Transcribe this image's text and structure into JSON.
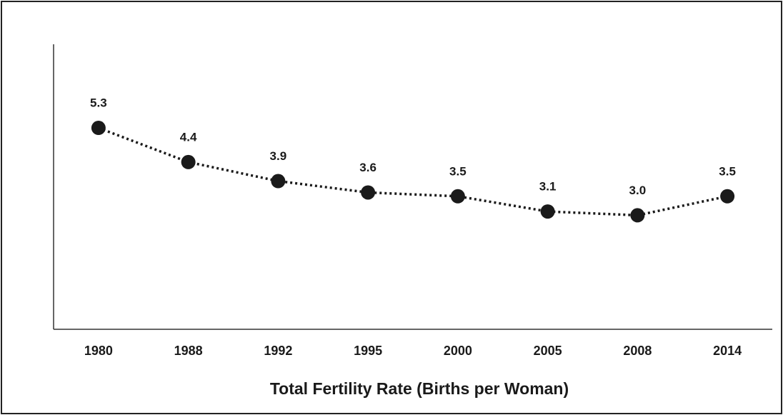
{
  "chart_data": {
    "type": "line",
    "x_label": "Total Fertility Rate (Births per Woman)",
    "categories": [
      "1980",
      "1988",
      "1992",
      "1995",
      "2000",
      "2005",
      "2008",
      "2014"
    ],
    "values": [
      5.3,
      4.4,
      3.9,
      3.6,
      3.5,
      3.1,
      3.0,
      3.5
    ],
    "value_labels": [
      "5.3",
      "4.4",
      "3.9",
      "3.6",
      "3.5",
      "3.1",
      "3.0",
      "3.5"
    ],
    "color": "#1a1a1a",
    "ylim": [
      0,
      7.5
    ],
    "line_style": "dotted"
  }
}
